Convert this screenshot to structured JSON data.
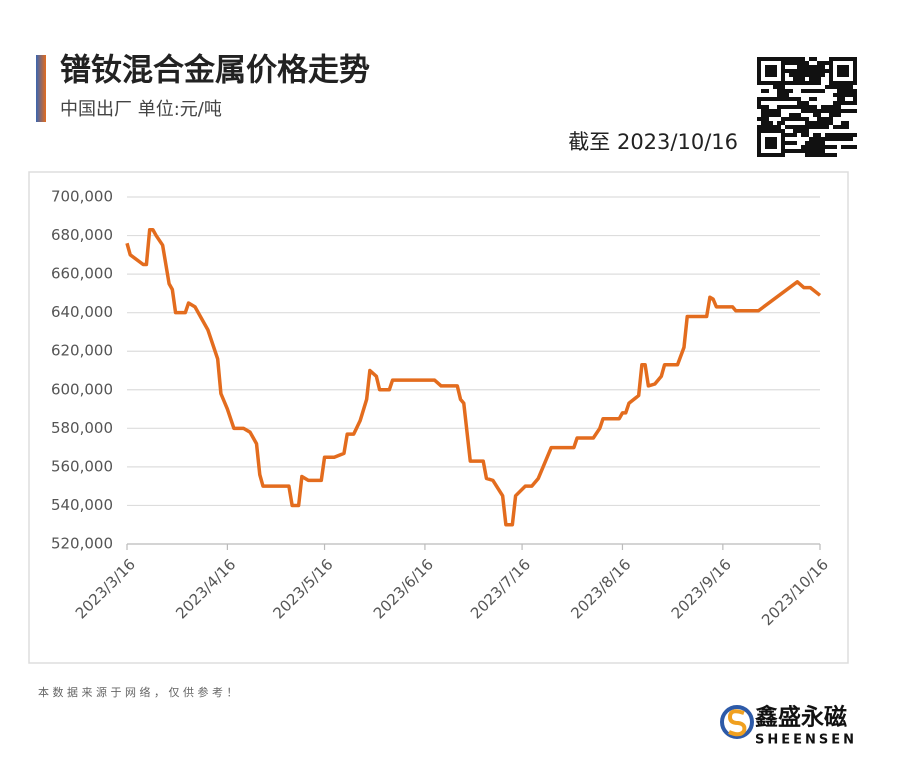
{
  "header": {
    "title": "镨钕混合金属价格走势",
    "subtitle": "中国出厂  单位:元/吨",
    "date_note": "截至 2023/10/16"
  },
  "footer": {
    "source_note": "本 数 据 来 源 于 网 络 ， 仅 供 参 考 ！",
    "brand": "鑫盛永磁",
    "brand_en": "SHEENSEN"
  },
  "chart_data": {
    "type": "line",
    "x": [
      "2023/3/16",
      "2023/3/17",
      "2023/3/21",
      "2023/3/22",
      "2023/3/23",
      "2023/3/24",
      "2023/3/25",
      "2023/3/27",
      "2023/3/29",
      "2023/3/30",
      "2023/3/31",
      "2023/4/3",
      "2023/4/4",
      "2023/4/6",
      "2023/4/10",
      "2023/4/13",
      "2023/4/14",
      "2023/4/16",
      "2023/4/18",
      "2023/4/21",
      "2023/4/23",
      "2023/4/25",
      "2023/4/26",
      "2023/4/27",
      "2023/5/5",
      "2023/5/6",
      "2023/5/8",
      "2023/5/9",
      "2023/5/11",
      "2023/5/15",
      "2023/5/16",
      "2023/5/17",
      "2023/5/19",
      "2023/5/22",
      "2023/5/23",
      "2023/5/25",
      "2023/5/27",
      "2023/5/29",
      "2023/5/30",
      "2023/6/1",
      "2023/6/2",
      "2023/6/5",
      "2023/6/6",
      "2023/6/19",
      "2023/6/21",
      "2023/6/26",
      "2023/6/27",
      "2023/6/28",
      "2023/6/30",
      "2023/7/4",
      "2023/7/5",
      "2023/7/7",
      "2023/7/10",
      "2023/7/11",
      "2023/7/13",
      "2023/7/14",
      "2023/7/17",
      "2023/7/19",
      "2023/7/21",
      "2023/7/25",
      "2023/8/1",
      "2023/8/2",
      "2023/8/7",
      "2023/8/9",
      "2023/8/10",
      "2023/8/15",
      "2023/8/16",
      "2023/8/17",
      "2023/8/18",
      "2023/8/21",
      "2023/8/22",
      "2023/8/23",
      "2023/8/24",
      "2023/8/26",
      "2023/8/28",
      "2023/8/29",
      "2023/9/2",
      "2023/9/4",
      "2023/9/5",
      "2023/9/11",
      "2023/9/12",
      "2023/9/13",
      "2023/9/14",
      "2023/9/19",
      "2023/9/20",
      "2023/9/27",
      "2023/10/9",
      "2023/10/11",
      "2023/10/13",
      "2023/10/16"
    ],
    "series": [
      {
        "color": "#e36c1e",
        "values": [
          676000,
          670000,
          665000,
          665000,
          683000,
          683000,
          680000,
          675000,
          655000,
          652000,
          640000,
          640000,
          645000,
          643000,
          631000,
          616000,
          598000,
          590000,
          580000,
          580000,
          578000,
          572000,
          556000,
          550000,
          550000,
          540000,
          540000,
          555000,
          553000,
          553000,
          565000,
          565000,
          565000,
          567000,
          577000,
          577000,
          584000,
          595000,
          610000,
          607000,
          600000,
          600000,
          605000,
          605000,
          602000,
          602000,
          595000,
          593000,
          563000,
          563000,
          554000,
          553000,
          545000,
          530000,
          530000,
          545000,
          550000,
          550000,
          554000,
          570000,
          570000,
          575000,
          575000,
          580000,
          585000,
          585000,
          588000,
          588000,
          593000,
          597000,
          613000,
          613000,
          602000,
          603000,
          607000,
          613000,
          613000,
          622000,
          638000,
          638000,
          648000,
          647000,
          643000,
          643000,
          641000,
          641000,
          656000,
          653000,
          653000,
          649000
        ]
      }
    ],
    "xlim": [
      "2023/3/16",
      "2023/10/16"
    ],
    "xticks": [
      "2023/3/16",
      "2023/4/16",
      "2023/5/16",
      "2023/6/16",
      "2023/7/16",
      "2023/8/16",
      "2023/9/16",
      "2023/10/16"
    ],
    "ylim": [
      520000,
      700000
    ],
    "yticks": [
      {
        "value": 520000,
        "label": "520,000"
      },
      {
        "value": 540000,
        "label": "540,000"
      },
      {
        "value": 560000,
        "label": "560,000"
      },
      {
        "value": 580000,
        "label": "580,000"
      },
      {
        "value": 600000,
        "label": "600,000"
      },
      {
        "value": 620000,
        "label": "620,000"
      },
      {
        "value": 640000,
        "label": "640,000"
      },
      {
        "value": 660000,
        "label": "660,000"
      },
      {
        "value": 680000,
        "label": "680,000"
      },
      {
        "value": 700000,
        "label": "700,000"
      }
    ],
    "grid": true
  }
}
